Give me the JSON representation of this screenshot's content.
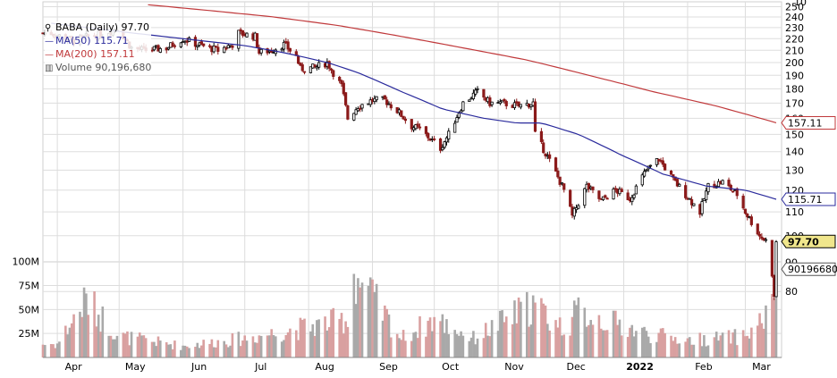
{
  "legend": {
    "ticker": "BABA (Daily) 97.70",
    "ma50": "MA(50) 115.71",
    "ma200": "MA(200) 157.11",
    "volume": "Volume 90,196,680"
  },
  "colors": {
    "up": "#000000",
    "down": "#8b1a1a",
    "ma50": "#2a2a9c",
    "ma200": "#c0393b",
    "vol_up": "#a9a9a9",
    "vol_down": "#d9a0a0",
    "grid": "#dddddd",
    "last_price": "#f0e68c"
  },
  "chart_data": {
    "type": "candlestick",
    "symbol": "BABA",
    "interval": "Daily",
    "last_price": 97.7,
    "price_axis": {
      "scale": "log",
      "range": [
        66,
        255
      ],
      "ticks": [
        80,
        90,
        100,
        110,
        120,
        130,
        140,
        150,
        160,
        170,
        180,
        190,
        200,
        210,
        220,
        230,
        240,
        250
      ],
      "top_cut_label": "10"
    },
    "volume_axis": {
      "range_millions": [
        0,
        110
      ],
      "ticks": [
        "25M",
        "50M",
        "75M",
        "100M"
      ],
      "tick_values_millions": [
        25,
        50,
        75,
        100
      ]
    },
    "x_axis": {
      "labels": [
        "Apr",
        "May",
        "Jun",
        "Jul",
        "Aug",
        "Sep",
        "Oct",
        "Nov",
        "Dec",
        "2022",
        "Feb",
        "Mar"
      ],
      "bold_label": "2022"
    },
    "price_path": [
      [
        "2021-03-29",
        225
      ],
      [
        "2021-04-09",
        218
      ],
      [
        "2021-04-16",
        222
      ],
      [
        "2021-04-23",
        224
      ],
      [
        "2021-04-30",
        230
      ],
      [
        "2021-05-07",
        212
      ],
      [
        "2021-05-14",
        210
      ],
      [
        "2021-05-24",
        212
      ],
      [
        "2021-06-01",
        220
      ],
      [
        "2021-06-08",
        215
      ],
      [
        "2021-06-18",
        210
      ],
      [
        "2021-06-25",
        215
      ],
      [
        "2021-06-28",
        225
      ],
      [
        "2021-07-06",
        222
      ],
      [
        "2021-07-08",
        208
      ],
      [
        "2021-07-14",
        210
      ],
      [
        "2021-07-20",
        215
      ],
      [
        "2021-07-26",
        205
      ],
      [
        "2021-07-28",
        195
      ],
      [
        "2021-08-04",
        196
      ],
      [
        "2021-08-10",
        200
      ],
      [
        "2021-08-13",
        192
      ],
      [
        "2021-08-17",
        182
      ],
      [
        "2021-08-20",
        160
      ],
      [
        "2021-08-25",
        168
      ],
      [
        "2021-09-01",
        172
      ],
      [
        "2021-09-07",
        172
      ],
      [
        "2021-09-13",
        165
      ],
      [
        "2021-09-20",
        155
      ],
      [
        "2021-09-24",
        153
      ],
      [
        "2021-10-04",
        142
      ],
      [
        "2021-10-08",
        150
      ],
      [
        "2021-10-15",
        170
      ],
      [
        "2021-10-22",
        178
      ],
      [
        "2021-10-28",
        170
      ],
      [
        "2021-11-03",
        170
      ],
      [
        "2021-11-11",
        168
      ],
      [
        "2021-11-18",
        170
      ],
      [
        "2021-11-19",
        150
      ],
      [
        "2021-11-26",
        135
      ],
      [
        "2021-12-03",
        120
      ],
      [
        "2021-12-07",
        108
      ],
      [
        "2021-12-14",
        122
      ],
      [
        "2021-12-21",
        115
      ],
      [
        "2021-12-28",
        120
      ],
      [
        "2022-01-04",
        116
      ],
      [
        "2022-01-12",
        130
      ],
      [
        "2022-01-18",
        136
      ],
      [
        "2022-01-25",
        125
      ],
      [
        "2022-01-31",
        118
      ],
      [
        "2022-02-07",
        110
      ],
      [
        "2022-02-11",
        122
      ],
      [
        "2022-02-18",
        124
      ],
      [
        "2022-02-25",
        118
      ],
      [
        "2022-03-01",
        110
      ],
      [
        "2022-03-08",
        100
      ],
      [
        "2022-03-11",
        98
      ],
      [
        "2022-03-14",
        86
      ],
      [
        "2022-03-15",
        78
      ],
      [
        "2022-03-16",
        97.7
      ]
    ],
    "ma50_path": [
      [
        "2021-03-29",
        234
      ],
      [
        "2021-05-03",
        226
      ],
      [
        "2021-06-01",
        220
      ],
      [
        "2021-07-01",
        214
      ],
      [
        "2021-07-20",
        208
      ],
      [
        "2021-08-10",
        200
      ],
      [
        "2021-08-25",
        192
      ],
      [
        "2021-09-15",
        178
      ],
      [
        "2021-10-05",
        166
      ],
      [
        "2021-10-25",
        160
      ],
      [
        "2021-11-10",
        157
      ],
      [
        "2021-11-22",
        157
      ],
      [
        "2021-12-10",
        150
      ],
      [
        "2021-12-31",
        138
      ],
      [
        "2022-01-20",
        128
      ],
      [
        "2022-02-10",
        122
      ],
      [
        "2022-03-01",
        120
      ],
      [
        "2022-03-16",
        115.71
      ]
    ],
    "ma200_path": [
      [
        "2021-05-15",
        252
      ],
      [
        "2021-06-15",
        246
      ],
      [
        "2021-07-15",
        240
      ],
      [
        "2021-08-15",
        232
      ],
      [
        "2021-09-15",
        222
      ],
      [
        "2021-10-15",
        212
      ],
      [
        "2021-11-15",
        202
      ],
      [
        "2021-12-15",
        190
      ],
      [
        "2022-01-15",
        178
      ],
      [
        "2022-02-15",
        168
      ],
      [
        "2022-03-16",
        157.11
      ]
    ],
    "volume_path_millions": [
      [
        "2021-04-01",
        14
      ],
      [
        "2021-04-15",
        60
      ],
      [
        "2021-05-01",
        22
      ],
      [
        "2021-05-14",
        18
      ],
      [
        "2021-06-01",
        12
      ],
      [
        "2021-07-01",
        20
      ],
      [
        "2021-07-27",
        30
      ],
      [
        "2021-08-20",
        40
      ],
      [
        "2021-08-23",
        88
      ],
      [
        "2021-09-15",
        20
      ],
      [
        "2021-10-01",
        40
      ],
      [
        "2021-10-20",
        20
      ],
      [
        "2021-11-18",
        55
      ],
      [
        "2021-12-03",
        30
      ],
      [
        "2021-12-10",
        48
      ],
      [
        "2022-01-12",
        25
      ],
      [
        "2022-02-01",
        18
      ],
      [
        "2022-03-01",
        22
      ],
      [
        "2022-03-14",
        50
      ],
      [
        "2022-03-15",
        55
      ],
      [
        "2022-03-16",
        90
      ]
    ],
    "reference_labels": {
      "ma200": "157.11",
      "ma50": "115.71",
      "volume": "90196680",
      "last_price": "97.70"
    },
    "start_date": "2021-03-25",
    "end_date": "2022-03-16"
  }
}
